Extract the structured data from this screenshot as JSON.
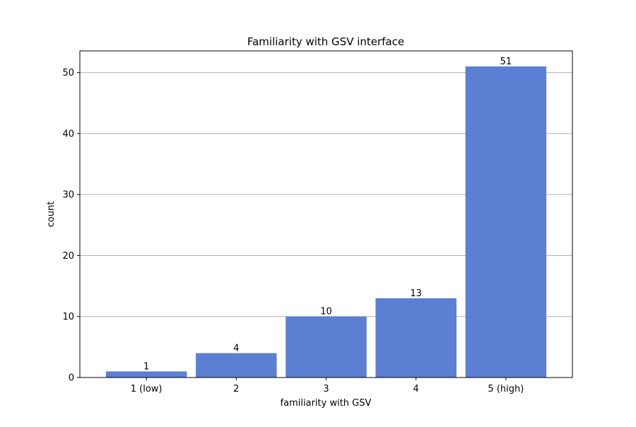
{
  "chart_data": {
    "type": "bar",
    "title": "Familiarity with GSV interface",
    "xlabel": "familiarity with GSV",
    "ylabel": "count",
    "categories": [
      "1 (low)",
      "2",
      "3",
      "4",
      "5 (high)"
    ],
    "values": [
      1,
      4,
      10,
      13,
      51
    ],
    "data_labels": [
      "1",
      "4",
      "10",
      "13",
      "51"
    ],
    "ylim": [
      0,
      53.55
    ],
    "yticks": [
      0,
      10,
      20,
      30,
      40,
      50
    ],
    "ytick_labels": [
      "0",
      "10",
      "20",
      "30",
      "40",
      "50"
    ],
    "grid": "y-major",
    "bar_color": "#5b7fd3",
    "grid_color": "#b0b0b0"
  }
}
